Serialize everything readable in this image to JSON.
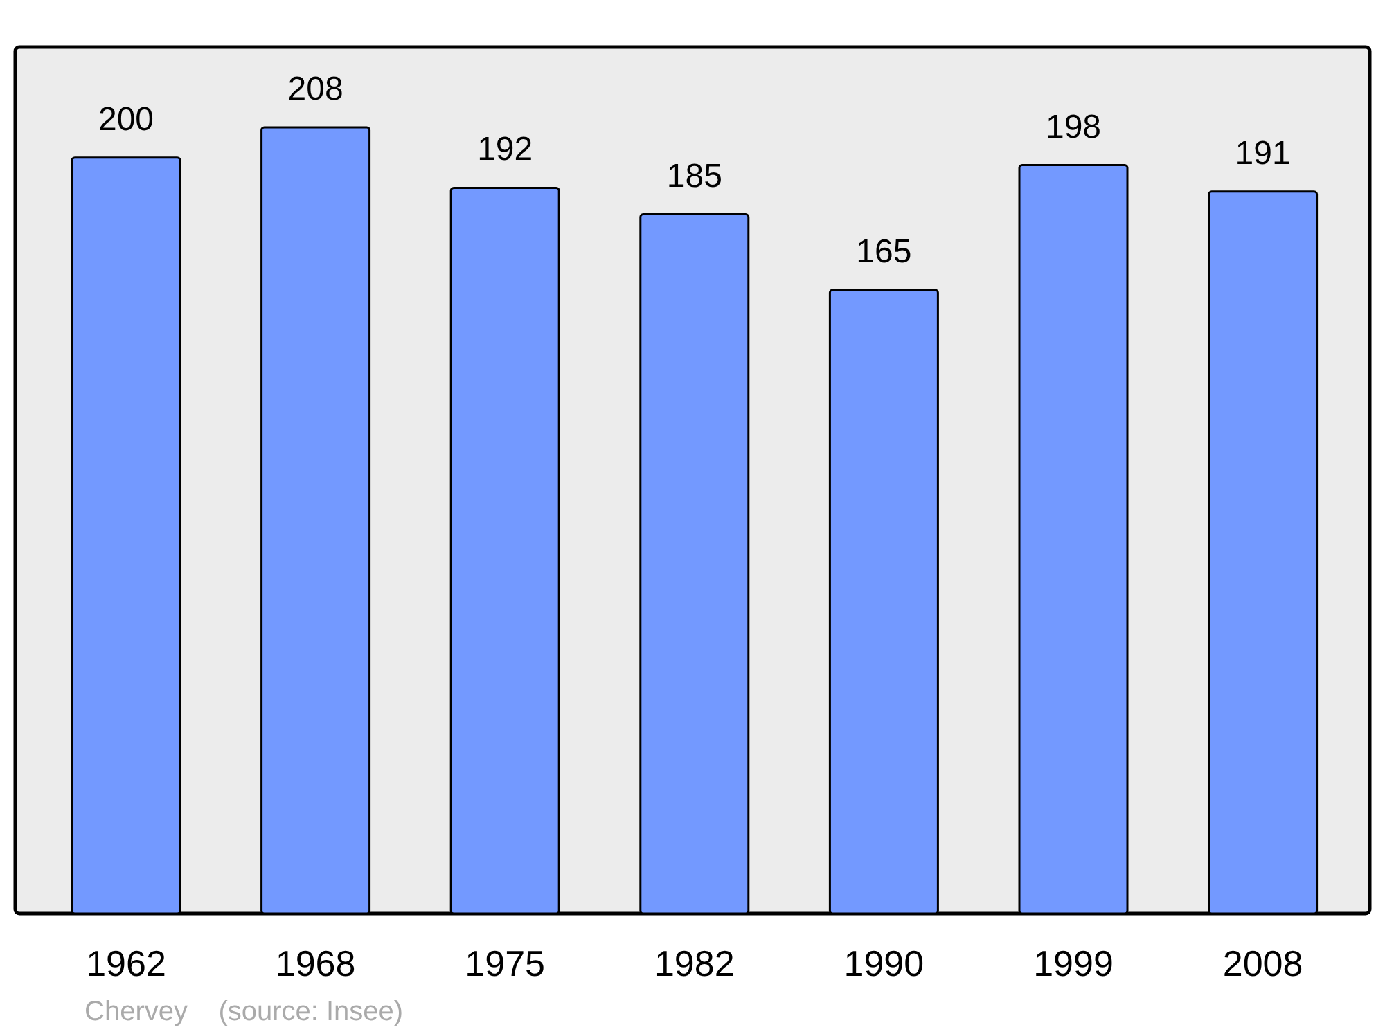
{
  "chart_data": {
    "type": "bar",
    "categories": [
      "1962",
      "1968",
      "1975",
      "1982",
      "1990",
      "1999",
      "2008"
    ],
    "values": [
      200,
      208,
      192,
      185,
      165,
      198,
      191
    ],
    "color": "#7399ff",
    "data_labels": true,
    "annotations": [
      "Chervey    (source: Insee)"
    ]
  }
}
